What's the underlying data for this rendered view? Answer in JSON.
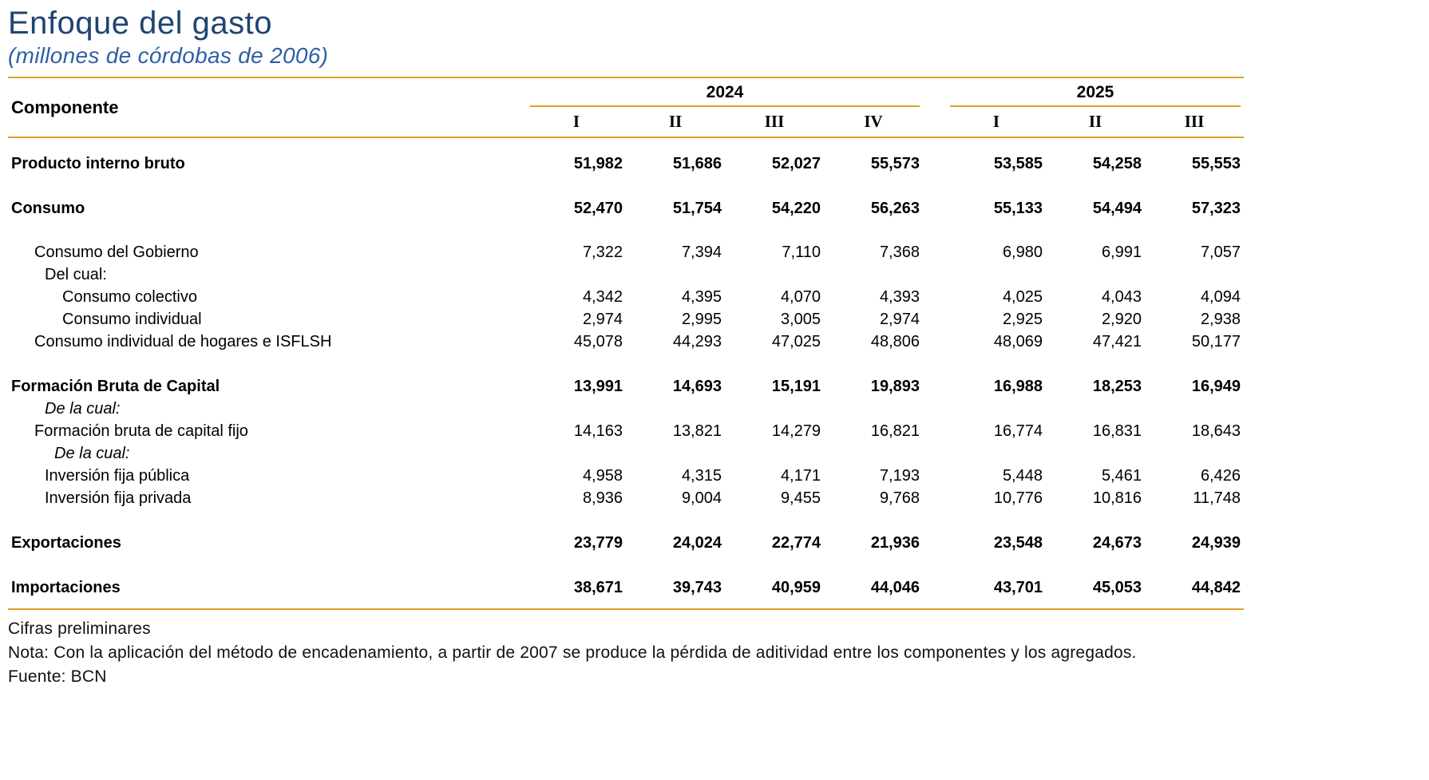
{
  "page": {
    "title": "Enfoque del gasto",
    "subtitle": "(millones de córdobas de 2006)"
  },
  "colors": {
    "title_blue": "#1F4472",
    "subtitle_blue": "#2F5FA5",
    "rule_orange": "#DDA226",
    "text_black": "#000000"
  },
  "table": {
    "component_header": "Componente",
    "year_groups": [
      {
        "year": "2024",
        "quarters": [
          "I",
          "II",
          "III",
          "IV"
        ]
      },
      {
        "year": "2025",
        "quarters": [
          "I",
          "II",
          "III"
        ]
      }
    ],
    "rows": [
      {
        "label": "Producto interno bruto",
        "style": "bold",
        "indent": 0,
        "values": [
          "51,982",
          "51,686",
          "52,027",
          "55,573",
          "53,585",
          "54,258",
          "55,553"
        ]
      },
      {
        "label": "Consumo",
        "style": "bold",
        "indent": 0,
        "values": [
          "52,470",
          "51,754",
          "54,220",
          "56,263",
          "55,133",
          "54,494",
          "57,323"
        ]
      },
      {
        "label": "Consumo del Gobierno",
        "style": "normal",
        "indent": 1,
        "spacer_before": true,
        "values": [
          "7,322",
          "7,394",
          "7,110",
          "7,368",
          "6,980",
          "6,991",
          "7,057"
        ]
      },
      {
        "label": "Del cual:",
        "style": "normal",
        "indent": 2,
        "values": []
      },
      {
        "label": "Consumo colectivo",
        "style": "normal",
        "indent": 4,
        "values": [
          "4,342",
          "4,395",
          "4,070",
          "4,393",
          "4,025",
          "4,043",
          "4,094"
        ]
      },
      {
        "label": "Consumo individual",
        "style": "normal",
        "indent": 4,
        "values": [
          "2,974",
          "2,995",
          "3,005",
          "2,974",
          "2,925",
          "2,920",
          "2,938"
        ]
      },
      {
        "label": "Consumo individual de hogares e ISFLSH",
        "style": "normal",
        "indent": 1,
        "values": [
          "45,078",
          "44,293",
          "47,025",
          "48,806",
          "48,069",
          "47,421",
          "50,177"
        ]
      },
      {
        "label": "Formación Bruta de Capital",
        "style": "bold",
        "indent": 0,
        "values": [
          "13,991",
          "14,693",
          "15,191",
          "19,893",
          "16,988",
          "18,253",
          "16,949"
        ]
      },
      {
        "label": "De la cual:",
        "style": "italic",
        "indent": 2,
        "values": []
      },
      {
        "label": "Formación bruta de capital fijo",
        "style": "normal",
        "indent": 1,
        "values": [
          "14,163",
          "13,821",
          "14,279",
          "16,821",
          "16,774",
          "16,831",
          "18,643"
        ]
      },
      {
        "label": "De la cual:",
        "style": "italic",
        "indent": 3,
        "values": []
      },
      {
        "label": "Inversión fija pública",
        "style": "normal",
        "indent": 2,
        "values": [
          "4,958",
          "4,315",
          "4,171",
          "7,193",
          "5,448",
          "5,461",
          "6,426"
        ]
      },
      {
        "label": "Inversión fija privada",
        "style": "normal",
        "indent": 2,
        "values": [
          "8,936",
          "9,004",
          "9,455",
          "9,768",
          "10,776",
          "10,816",
          "11,748"
        ]
      },
      {
        "label": "Exportaciones",
        "style": "bold",
        "indent": 0,
        "values": [
          "23,779",
          "24,024",
          "22,774",
          "21,936",
          "23,548",
          "24,673",
          "24,939"
        ]
      },
      {
        "label": "Importaciones",
        "style": "bold",
        "indent": 0,
        "values": [
          "38,671",
          "39,743",
          "40,959",
          "44,046",
          "43,701",
          "45,053",
          "44,842"
        ]
      }
    ]
  },
  "footnotes": {
    "preliminary": "Cifras preliminares",
    "note": "Nota: Con la aplicación del método de encadenamiento, a partir de 2007 se produce la pérdida de aditividad entre los componentes y los agregados.",
    "source": "Fuente: BCN"
  }
}
